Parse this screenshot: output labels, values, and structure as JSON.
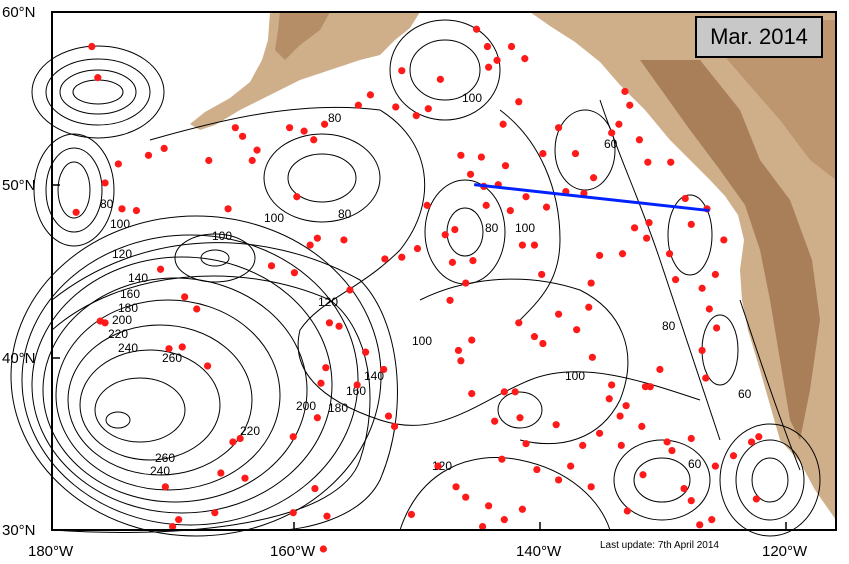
{
  "map": {
    "title": "Mar. 2014",
    "footer_note": "Last update: 7th April 2014",
    "projection_extent": {
      "lon_min": -180,
      "lon_max": -115,
      "lat_min": 30,
      "lat_max": 60
    },
    "lat_ticks": [
      "60°N",
      "50°N",
      "40°N",
      "30°N"
    ],
    "lon_ticks": [
      "180°W",
      "160°W",
      "140°W",
      "120°W"
    ],
    "contour_labels": [
      "80",
      "100",
      "100",
      "80",
      "100",
      "80",
      "100",
      "120",
      "140",
      "160",
      "180",
      "200",
      "220",
      "240",
      "260",
      "120",
      "100",
      "100",
      "80",
      "80",
      "60",
      "60",
      "60",
      "200",
      "180",
      "160",
      "140",
      "220",
      "240",
      "260",
      "120",
      "100"
    ],
    "colors": {
      "land": "#c4a17c",
      "land_dark": "#a97f5a",
      "float_dot": "#ff1a1a",
      "section_line": "#0022ff",
      "contour": "#000000",
      "title_box": "#c8c8c8"
    },
    "section_line": {
      "start": {
        "lon": -145.0,
        "lat": 50.0
      },
      "end": {
        "lon": -125.5,
        "lat": 48.5
      }
    }
  }
}
